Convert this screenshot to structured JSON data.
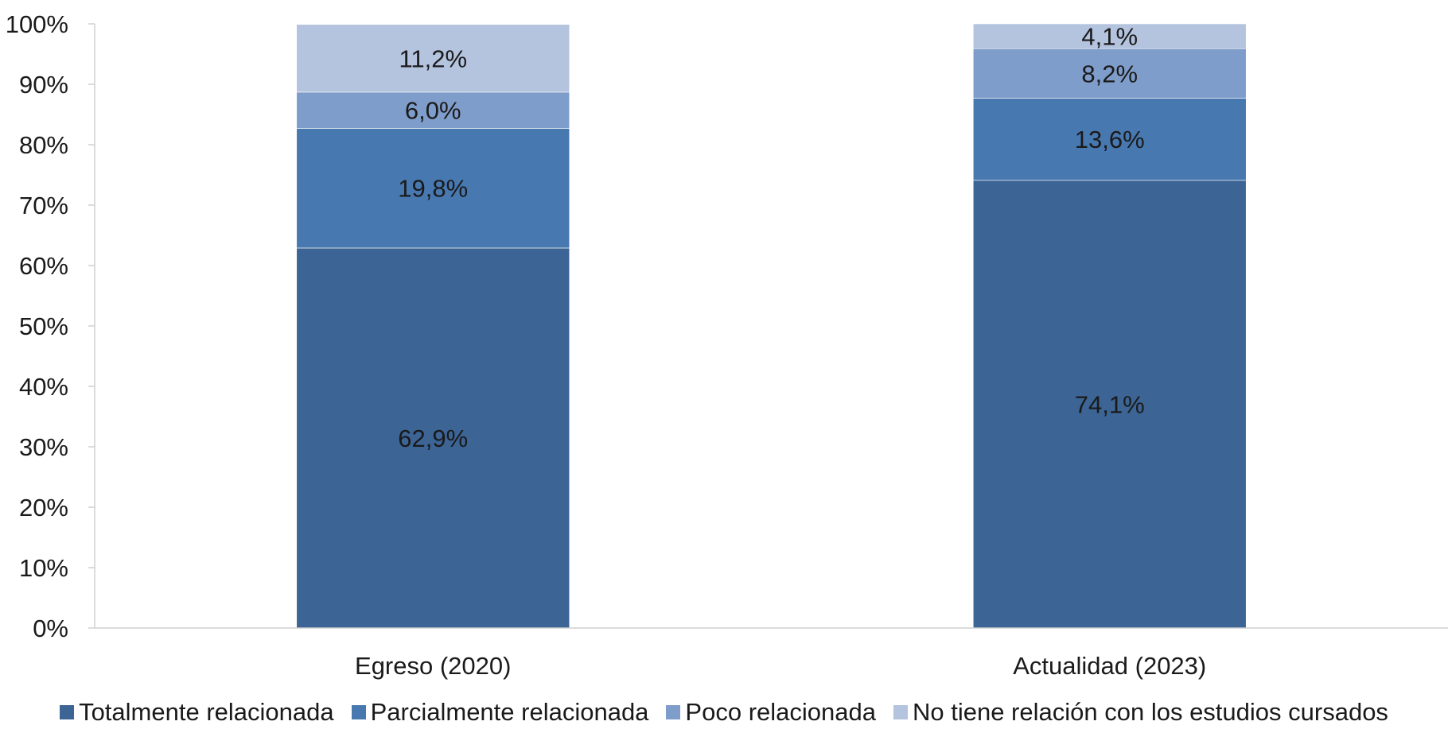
{
  "chart_data": {
    "type": "bar",
    "stacked": true,
    "categories": [
      "Egreso (2020)",
      "Actualidad (2023)"
    ],
    "series": [
      {
        "name": "Totalmente relacionada",
        "values": [
          62.9,
          74.1
        ],
        "labels": [
          "62,9%",
          "74,1%"
        ],
        "color": "#3c6495"
      },
      {
        "name": "Parcialmente relacionada",
        "values": [
          19.8,
          13.6
        ],
        "labels": [
          "19,8%",
          "13,6%"
        ],
        "color": "#4878b0"
      },
      {
        "name": "Poco relacionada",
        "values": [
          6.0,
          8.2
        ],
        "labels": [
          "6,0%",
          "8,2%"
        ],
        "color": "#7f9dca"
      },
      {
        "name": "No tiene relación con los estudios cursados",
        "values": [
          11.2,
          4.1
        ],
        "labels": [
          "11,2%",
          "4,1%"
        ],
        "color": "#b4c3de"
      }
    ],
    "ylim": [
      0,
      100
    ],
    "yticks": [
      0,
      10,
      20,
      30,
      40,
      50,
      60,
      70,
      80,
      90,
      100
    ],
    "ytick_labels": [
      "0%",
      "10%",
      "20%",
      "30%",
      "40%",
      "50%",
      "60%",
      "70%",
      "80%",
      "90%",
      "100%"
    ],
    "title": "",
    "xlabel": "",
    "ylabel": "",
    "grid": false,
    "legend_position": "bottom"
  }
}
